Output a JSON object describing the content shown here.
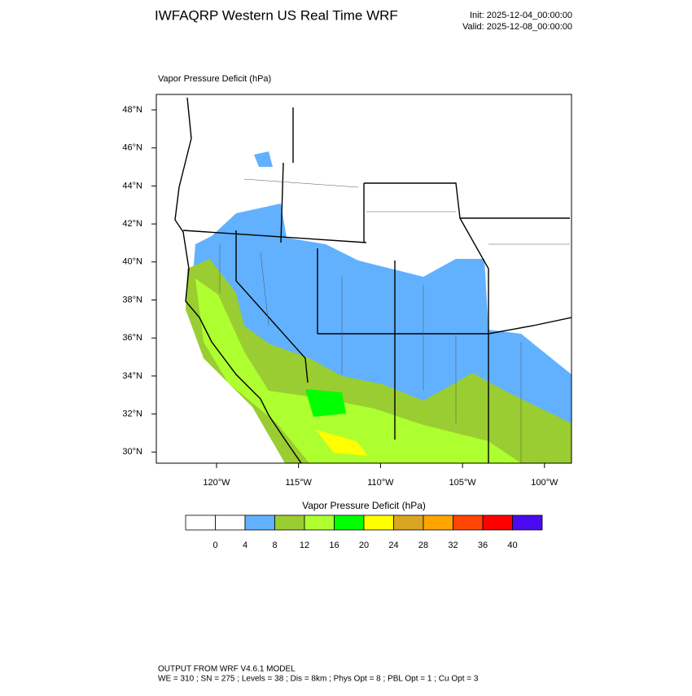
{
  "header": {
    "title": "IWFAQRP Western US Real Time WRF",
    "init": "Init: 2025-12-04_00:00:00",
    "valid": "Valid: 2025-12-08_00:00:00"
  },
  "map": {
    "title": "Vapor Pressure Deficit   (hPa)",
    "lat_labels": [
      "48°N",
      "46°N",
      "44°N",
      "42°N",
      "40°N",
      "38°N",
      "36°N",
      "34°N",
      "32°N",
      "30°N"
    ],
    "lon_labels": [
      "120°W",
      "115°W",
      "110°W",
      "105°W",
      "100°W"
    ]
  },
  "colorbar": {
    "title": "Vapor Pressure Deficit  (hPa)",
    "colors": [
      "#ffffff",
      "#ffffff",
      "#61b1ff",
      "#9acd32",
      "#adff2f",
      "#00ff00",
      "#ffff00",
      "#daa520",
      "#ffa500",
      "#ff4500",
      "#ff0000",
      "#4b0bf0"
    ],
    "ticks": [
      0,
      4,
      8,
      12,
      16,
      20,
      24,
      28,
      32,
      36,
      40
    ]
  },
  "footer": {
    "line1": "OUTPUT FROM WRF V4.6.1 MODEL",
    "line2": "WE = 310 ; SN = 275 ; Levels = 38 ; Dis = 8km ; Phys Opt = 8 ; PBL Opt = 1 ; Cu Opt = 3"
  }
}
